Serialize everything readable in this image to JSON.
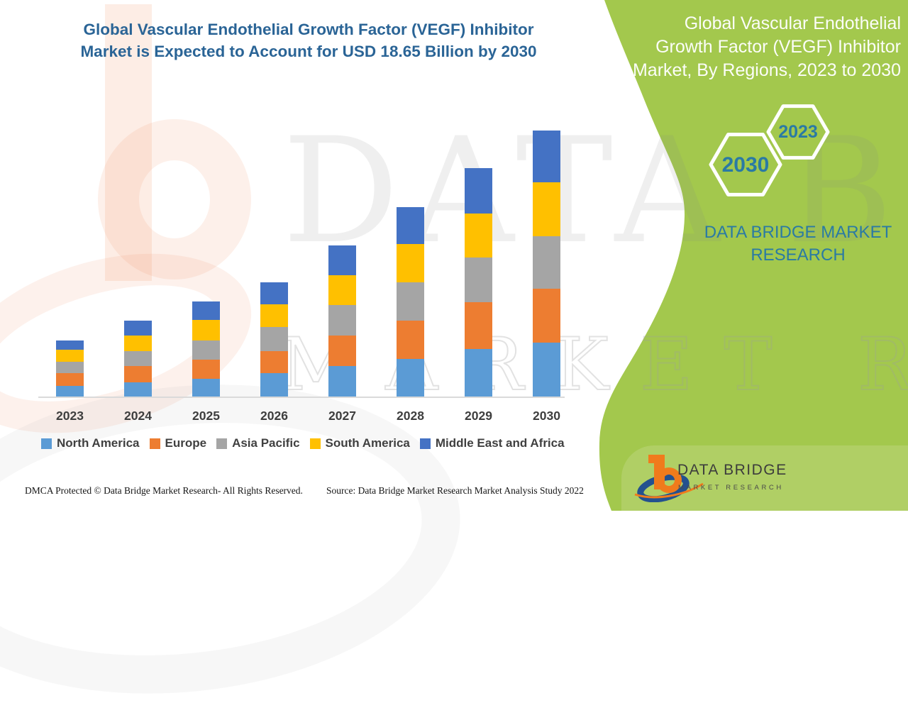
{
  "header": {
    "title_line1": "Global Vascular Endothelial Growth Factor (VEGF) Inhibitor",
    "title_line2": "Market is Expected to Account for USD 18.65 Billion by 2030",
    "title_color": "#2A6496"
  },
  "side_panel": {
    "bg_color": "#A3C84D",
    "heading_line1": "Global Vascular Endothelial",
    "heading_line2": "Growth Factor (VEGF) Inhibitor",
    "heading_line3": "Market, By Regions, 2023 to 2030",
    "hexagons": [
      {
        "label": "2023"
      },
      {
        "label": "2030"
      }
    ],
    "brand_line1": "DATA BRIDGE MARKET",
    "brand_line2": "RESEARCH",
    "text_color": "#2A7AA4"
  },
  "chart_data": {
    "type": "bar",
    "stacked": true,
    "title": "",
    "xlabel": "",
    "ylabel": "",
    "unit": "USD Billion (estimated; 2030 total = 18.65 from title)",
    "gridlines": false,
    "legend_position": "bottom",
    "categories": [
      "2023",
      "2024",
      "2025",
      "2026",
      "2027",
      "2028",
      "2029",
      "2030"
    ],
    "series": [
      {
        "name": "North America",
        "color": "#5B9BD5",
        "values": [
          0.77,
          1.01,
          1.26,
          1.66,
          2.15,
          2.65,
          3.33,
          3.78
        ]
      },
      {
        "name": "Europe",
        "color": "#ED7D31",
        "values": [
          0.86,
          1.11,
          1.32,
          1.53,
          2.11,
          2.69,
          3.26,
          3.76
        ]
      },
      {
        "name": "Asia Pacific",
        "color": "#A5A5A5",
        "values": [
          0.8,
          1.04,
          1.36,
          1.69,
          2.15,
          2.66,
          3.15,
          3.7
        ]
      },
      {
        "name": "South America",
        "color": "#FFC000",
        "values": [
          0.83,
          1.13,
          1.41,
          1.58,
          2.09,
          2.7,
          3.1,
          3.76
        ]
      },
      {
        "name": "Middle East and Africa",
        "color": "#4472C4",
        "values": [
          0.68,
          1.01,
          1.29,
          1.54,
          2.09,
          2.59,
          3.15,
          3.65
        ]
      }
    ],
    "totals": [
      3.94,
      5.3,
      6.64,
      8.0,
      10.59,
      13.29,
      15.99,
      18.65
    ]
  },
  "watermark": {
    "brand": "DATA BRIDGE",
    "outline": "MARKET RESEARCH"
  },
  "logo": {
    "title": "DATA BRIDGE",
    "subtitle": "MARKET RESEARCH"
  },
  "footer": {
    "left": "DMCA Protected © Data Bridge Market Research- All Rights Reserved.",
    "right": "Source: Data Bridge Market Research Market Analysis Study 2022"
  }
}
